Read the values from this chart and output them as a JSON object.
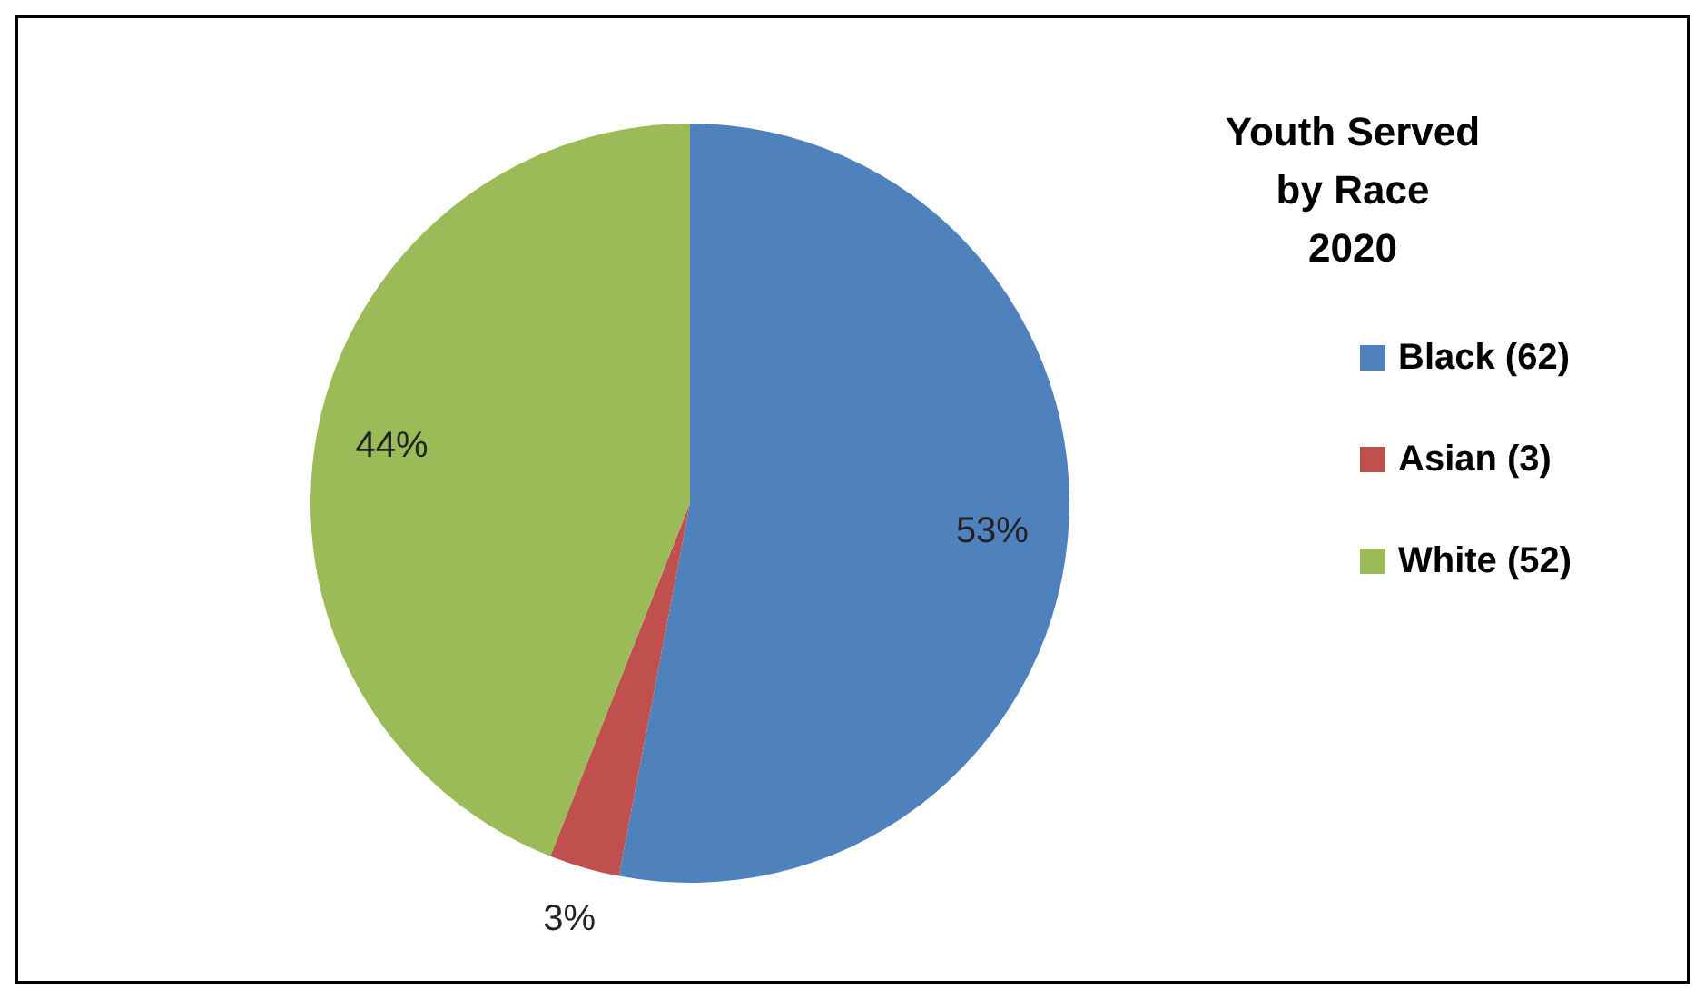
{
  "chart_data": {
    "type": "pie",
    "title": "Youth Served\nby Race\n2020",
    "categories": [
      "Black (62)",
      "Asian (3)",
      "White (52)"
    ],
    "values": [
      53,
      3,
      44
    ],
    "value_labels": [
      "53%",
      "3%",
      "44%"
    ],
    "colors": [
      "#4f81bd",
      "#c0504d",
      "#9bbb59"
    ],
    "legend": "right"
  }
}
